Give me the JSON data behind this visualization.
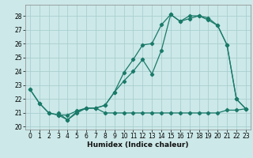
{
  "title": "",
  "xlabel": "Humidex (Indice chaleur)",
  "bg_color": "#cce8e8",
  "grid_color": "#aacfcf",
  "line_color": "#1a7a6a",
  "xlim": [
    -0.5,
    23.5
  ],
  "ylim": [
    19.8,
    28.8
  ],
  "yticks": [
    20,
    21,
    22,
    23,
    24,
    25,
    26,
    27,
    28
  ],
  "xticks": [
    0,
    1,
    2,
    3,
    4,
    5,
    6,
    7,
    8,
    9,
    10,
    11,
    12,
    13,
    14,
    15,
    16,
    17,
    18,
    19,
    20,
    21,
    22,
    23
  ],
  "line1_x": [
    0,
    1,
    2,
    3,
    4,
    5,
    6,
    7,
    8,
    9,
    10,
    11,
    12,
    13,
    14,
    15,
    16,
    17,
    18,
    19,
    20,
    21,
    22,
    23
  ],
  "line1_y": [
    22.7,
    21.7,
    21.0,
    20.85,
    20.85,
    21.15,
    21.35,
    21.35,
    21.0,
    21.0,
    21.0,
    21.0,
    21.0,
    21.0,
    21.0,
    21.0,
    21.0,
    21.0,
    21.0,
    21.0,
    21.0,
    21.2,
    21.2,
    21.3
  ],
  "line2_x": [
    0,
    1,
    2,
    3,
    4,
    5,
    6,
    7,
    8,
    9,
    10,
    11,
    12,
    13,
    14,
    15,
    16,
    17,
    18,
    19,
    20,
    21,
    22,
    23
  ],
  "line2_y": [
    22.7,
    21.7,
    21.0,
    20.85,
    20.5,
    21.0,
    21.35,
    21.35,
    21.55,
    22.5,
    23.9,
    24.85,
    25.9,
    26.0,
    27.35,
    28.1,
    27.6,
    28.0,
    28.0,
    27.7,
    27.3,
    25.9,
    22.0,
    21.3
  ],
  "line3_x": [
    3,
    4,
    5,
    6,
    7,
    8,
    9,
    10,
    11,
    12,
    13,
    14,
    15,
    16,
    17,
    18,
    19,
    20,
    21,
    22,
    23
  ],
  "line3_y": [
    21.0,
    20.5,
    21.1,
    21.35,
    21.35,
    21.55,
    22.5,
    23.3,
    24.0,
    24.85,
    23.8,
    25.5,
    28.1,
    27.6,
    27.8,
    28.0,
    27.85,
    27.3,
    25.9,
    22.0,
    21.3
  ],
  "xlabel_fontsize": 6.5,
  "tick_fontsize": 5.5,
  "lw": 0.9,
  "ms": 2.2
}
